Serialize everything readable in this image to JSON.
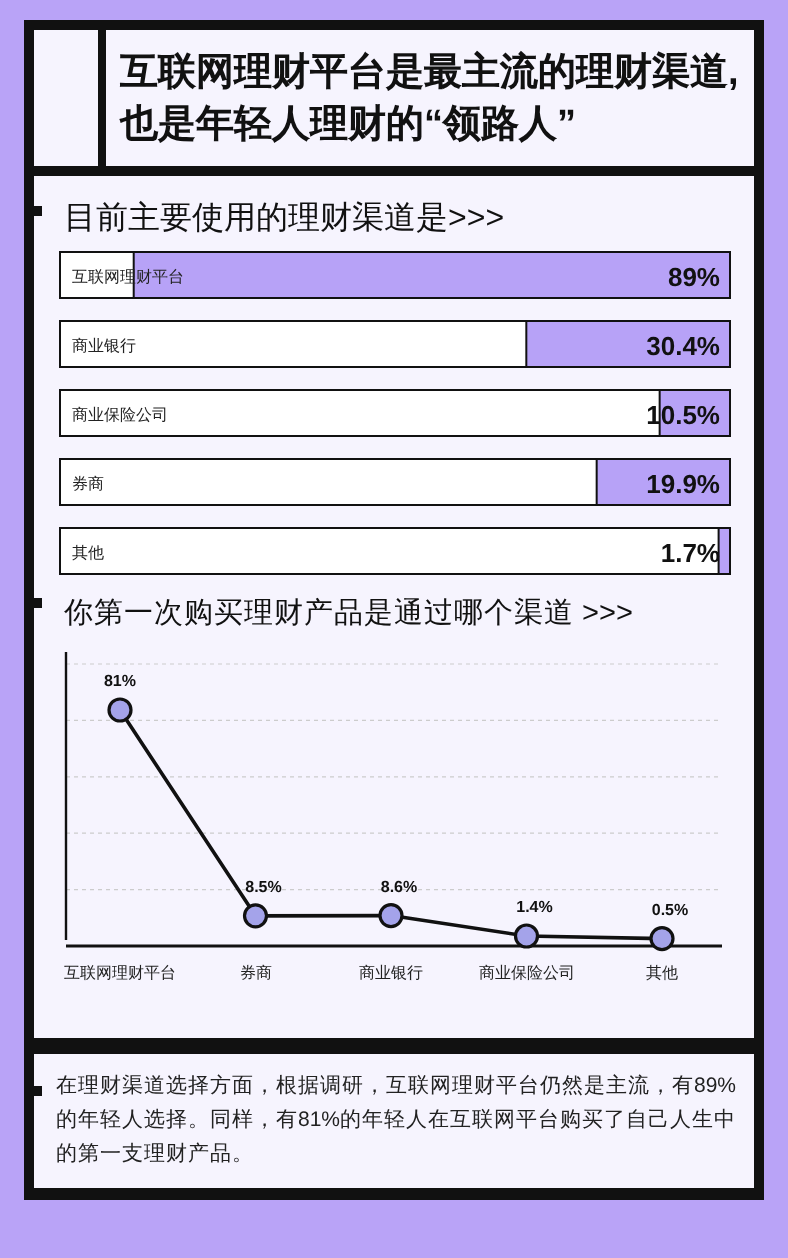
{
  "chart_data": [
    {
      "type": "other",
      "title": "互联网理财平台是最主流的理财渠道,\n也是年轻人理财的“领路人”"
    },
    {
      "type": "bar",
      "title": "目前主要使用的理财渠道是>>>",
      "orientation": "horizontal",
      "categories": [
        "互联网理财平台",
        "商业银行",
        "商业保险公司",
        "券商",
        "其他"
      ],
      "values": [
        89,
        30.4,
        10.5,
        19.9,
        1.7
      ],
      "value_labels": [
        "89%",
        "30.4%",
        "10.5%",
        "19.9%",
        "1.7%"
      ],
      "color": "#b7a2f7",
      "xlim": [
        100,
        0
      ]
    },
    {
      "type": "line",
      "title": "你第一次购买理财产品是通过哪个渠道 >>>",
      "categories": [
        "互联网理财平台",
        "券商",
        "商业银行",
        "商业保险公司",
        "其他"
      ],
      "series": [
        {
          "color": "#a4a3ea",
          "values": [
            81,
            8.5,
            8.6,
            1.4,
            0.5
          ],
          "value_labels": [
            "81%",
            "8.5%",
            "8.6%",
            "1.4%",
            "0.5%"
          ]
        }
      ],
      "grid": "y",
      "marker": "circle",
      "line_style": "solid"
    },
    {
      "type": "other",
      "annotations": [
        "在理财渠道选择方面，根据调研，互联网理财平台仍然是主流，有89%的年轻人选择。同样，有81%的年轻人在互联网平台购买了自己人生中的第一支理财产品。"
      ]
    }
  ]
}
